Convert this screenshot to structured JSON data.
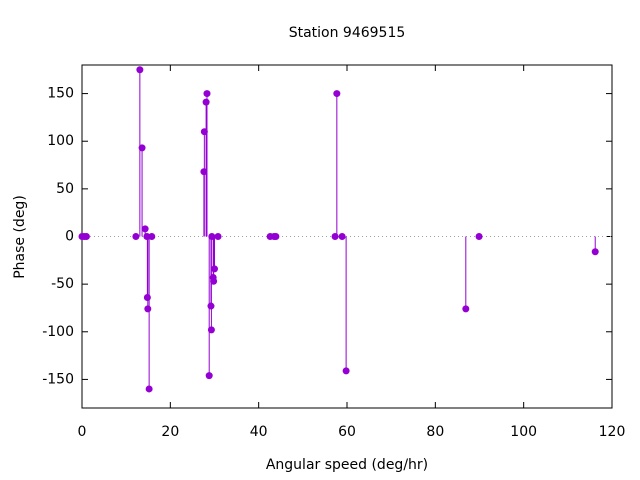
{
  "chart_data": {
    "type": "impulse",
    "title": "Station 9469515",
    "xlabel": "Angular speed (deg/hr)",
    "ylabel": "Phase (deg)",
    "color": "#9400d3",
    "x": [
      0,
      0.5,
      1,
      12.2,
      13.1,
      13.6,
      14.3,
      14.7,
      14.8,
      14.9,
      15.2,
      15.8,
      27.6,
      27.7,
      28.1,
      28.3,
      28.8,
      29.2,
      29.3,
      29.4,
      29.7,
      29.8,
      30.0,
      30.8,
      42.6,
      43.5,
      43.9,
      57.3,
      57.7,
      58.9,
      59.8,
      86.9,
      89.9,
      116.2
    ],
    "y": [
      0,
      0,
      0,
      0,
      175,
      93,
      8,
      0,
      -64,
      -76,
      -160,
      0,
      68,
      110,
      141,
      150,
      -146,
      -73,
      -98,
      0,
      -43,
      -47,
      -34,
      0,
      0,
      0,
      0,
      0,
      150,
      0,
      -141,
      -76,
      0,
      -16
    ],
    "xlim": [
      0,
      120
    ],
    "xticks": [
      0,
      20,
      40,
      60,
      80,
      100,
      120
    ],
    "ylim": [
      -180,
      180
    ],
    "yticks": [
      -150,
      -100,
      -50,
      0,
      50,
      100,
      150
    ],
    "zero_line": true
  }
}
